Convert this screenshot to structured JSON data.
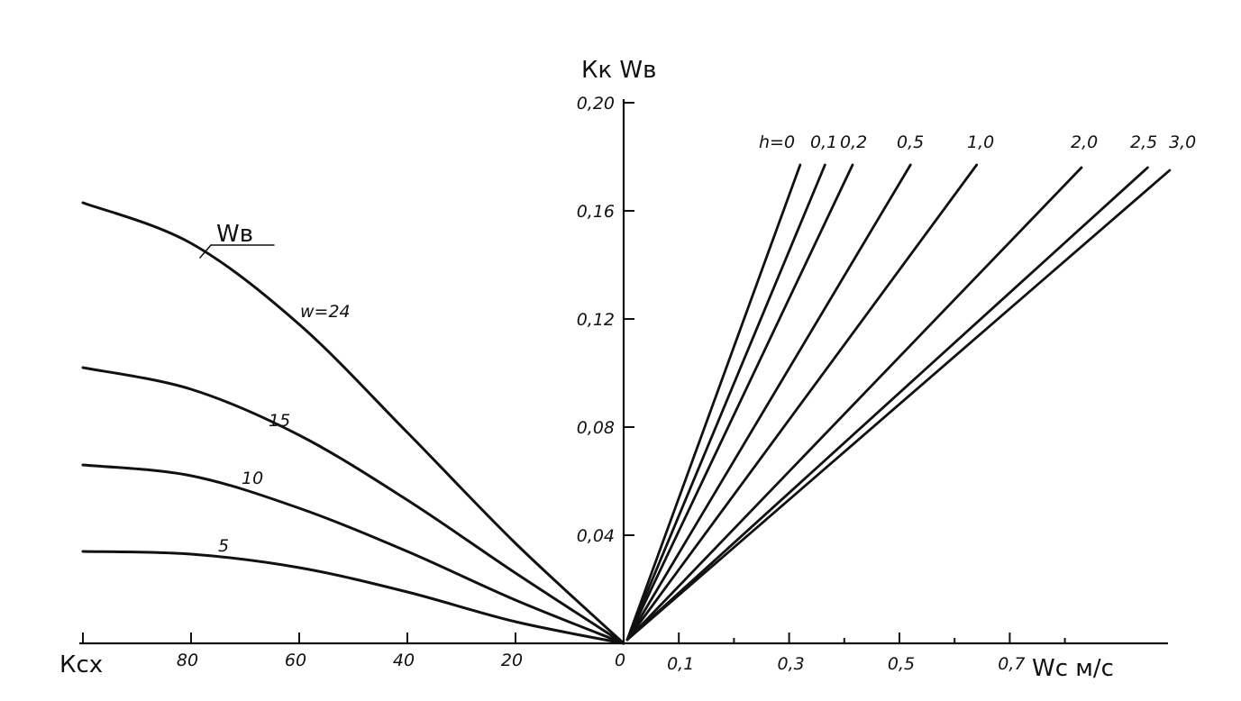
{
  "chart_data": {
    "type": "line",
    "title": "",
    "ylabel": "Кк Wв",
    "left_panel": {
      "xlabel": "Ксх",
      "x_ticks": [
        "80",
        "60",
        "40",
        "20",
        "0"
      ],
      "x_tick_values": [
        80,
        60,
        40,
        20,
        0
      ],
      "xlim": [
        100,
        0
      ],
      "curve_group_label": "Wв",
      "series": [
        {
          "name": "w=24",
          "label": "w=24",
          "x": [
            100,
            80,
            60,
            40,
            20,
            0
          ],
          "y": [
            0.163,
            0.148,
            0.118,
            0.078,
            0.037,
            0
          ]
        },
        {
          "name": "15",
          "label": "15",
          "x": [
            100,
            80,
            60,
            40,
            20,
            0
          ],
          "y": [
            0.102,
            0.094,
            0.077,
            0.053,
            0.026,
            0
          ]
        },
        {
          "name": "10",
          "label": "10",
          "x": [
            100,
            80,
            60,
            40,
            20,
            0
          ],
          "y": [
            0.066,
            0.062,
            0.05,
            0.034,
            0.016,
            0
          ]
        },
        {
          "name": "5",
          "label": "5",
          "x": [
            100,
            80,
            60,
            40,
            20,
            0
          ],
          "y": [
            0.034,
            0.033,
            0.028,
            0.019,
            0.008,
            0
          ]
        }
      ]
    },
    "right_panel": {
      "xlabel": "Wс м/с",
      "x_ticks": [
        "0",
        "0,1",
        "0,3",
        "0,5",
        "0,7"
      ],
      "x_tick_values": [
        0,
        0.1,
        0.3,
        0.5,
        0.7
      ],
      "xlim": [
        0,
        0.82
      ],
      "series": [
        {
          "name": "h=0",
          "label": "h=0",
          "x": [
            0,
            0.32
          ],
          "y": [
            0,
            0.177
          ]
        },
        {
          "name": "0,1",
          "label": "0,1",
          "x": [
            0,
            0.365
          ],
          "y": [
            0,
            0.177
          ]
        },
        {
          "name": "0,2",
          "label": "0,2",
          "x": [
            0,
            0.415
          ],
          "y": [
            0,
            0.177
          ]
        },
        {
          "name": "0,5",
          "label": "0,5",
          "x": [
            0,
            0.52
          ],
          "y": [
            0,
            0.177
          ]
        },
        {
          "name": "1,0",
          "label": "1,0",
          "x": [
            0,
            0.64
          ],
          "y": [
            0,
            0.177
          ]
        },
        {
          "name": "2,0",
          "label": "2,0",
          "x": [
            0,
            0.83
          ],
          "y": [
            0,
            0.176
          ]
        },
        {
          "name": "2,5",
          "label": "2,5",
          "x": [
            0,
            0.95
          ],
          "y": [
            0,
            0.176
          ]
        },
        {
          "name": "3,0",
          "label": "3,0",
          "x": [
            0,
            0.99
          ],
          "y": [
            0,
            0.175
          ]
        }
      ]
    },
    "y_ticks": [
      "0,04",
      "0,08",
      "0,12",
      "0,16",
      "0,20"
    ],
    "y_tick_values": [
      0.04,
      0.08,
      0.12,
      0.16,
      0.2
    ],
    "ylim": [
      0,
      0.2
    ],
    "grid": false
  }
}
